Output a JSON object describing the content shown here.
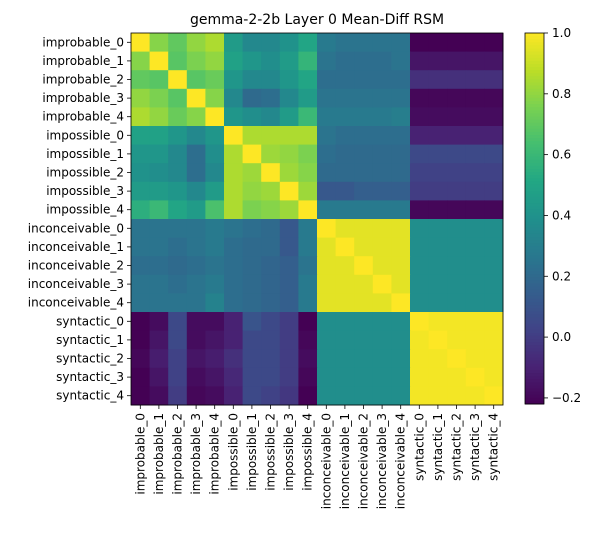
{
  "chart_data": {
    "type": "heatmap",
    "title": "gemma-2-2b Layer 0 Mean-Diff RSM",
    "xlabel": "",
    "ylabel": "",
    "row_labels": [
      "improbable_0",
      "improbable_1",
      "improbable_2",
      "improbable_3",
      "improbable_4",
      "impossible_0",
      "impossible_1",
      "impossible_2",
      "impossible_3",
      "impossible_4",
      "inconceivable_0",
      "inconceivable_1",
      "inconceivable_2",
      "inconceivable_3",
      "inconceivable_4",
      "syntactic_0",
      "syntactic_1",
      "syntactic_2",
      "syntactic_3",
      "syntactic_4"
    ],
    "col_labels": [
      "improbable_0",
      "improbable_1",
      "improbable_2",
      "improbable_3",
      "improbable_4",
      "impossible_0",
      "impossible_1",
      "impossible_2",
      "impossible_3",
      "impossible_4",
      "inconceivable_0",
      "inconceivable_1",
      "inconceivable_2",
      "inconceivable_3",
      "inconceivable_4",
      "syntactic_0",
      "syntactic_1",
      "syntactic_2",
      "syntactic_3",
      "syntactic_4"
    ],
    "values": [
      [
        1.0,
        0.78,
        0.7,
        0.8,
        0.85,
        0.45,
        0.35,
        0.35,
        0.4,
        0.5,
        0.28,
        0.25,
        0.25,
        0.25,
        0.25,
        -0.22,
        -0.22,
        -0.22,
        -0.22,
        -0.22
      ],
      [
        0.78,
        1.0,
        0.68,
        0.76,
        0.8,
        0.48,
        0.42,
        0.38,
        0.45,
        0.58,
        0.25,
        0.22,
        0.22,
        0.22,
        0.25,
        -0.15,
        -0.15,
        -0.15,
        -0.15,
        -0.15
      ],
      [
        0.7,
        0.68,
        1.0,
        0.68,
        0.72,
        0.42,
        0.35,
        0.35,
        0.42,
        0.5,
        0.22,
        0.22,
        0.22,
        0.22,
        0.22,
        -0.05,
        -0.05,
        -0.05,
        -0.05,
        -0.05
      ],
      [
        0.8,
        0.76,
        0.68,
        1.0,
        0.78,
        0.35,
        0.2,
        0.22,
        0.35,
        0.45,
        0.25,
        0.25,
        0.25,
        0.25,
        0.25,
        -0.2,
        -0.2,
        -0.2,
        -0.2,
        -0.2
      ],
      [
        0.85,
        0.8,
        0.72,
        0.78,
        1.0,
        0.42,
        0.38,
        0.35,
        0.45,
        0.6,
        0.28,
        0.28,
        0.28,
        0.28,
        0.3,
        -0.18,
        -0.18,
        -0.18,
        -0.18,
        -0.18
      ],
      [
        0.48,
        0.48,
        0.42,
        0.35,
        0.42,
        1.0,
        0.85,
        0.85,
        0.85,
        0.85,
        0.25,
        0.22,
        0.22,
        0.22,
        0.22,
        -0.1,
        -0.1,
        -0.1,
        -0.1,
        -0.1
      ],
      [
        0.42,
        0.42,
        0.35,
        0.22,
        0.38,
        0.85,
        1.0,
        0.82,
        0.8,
        0.76,
        0.22,
        0.2,
        0.2,
        0.2,
        0.2,
        0.05,
        0.05,
        0.05,
        0.05,
        0.05
      ],
      [
        0.4,
        0.38,
        0.35,
        0.22,
        0.35,
        0.85,
        0.82,
        1.0,
        0.82,
        0.78,
        0.2,
        0.2,
        0.2,
        0.2,
        0.2,
        0.02,
        0.02,
        0.02,
        0.02,
        0.02
      ],
      [
        0.45,
        0.45,
        0.42,
        0.35,
        0.45,
        0.85,
        0.8,
        0.82,
        1.0,
        0.82,
        0.12,
        0.12,
        0.15,
        0.15,
        0.15,
        0.0,
        0.0,
        0.0,
        0.0,
        0.0
      ],
      [
        0.55,
        0.6,
        0.5,
        0.45,
        0.65,
        0.85,
        0.76,
        0.78,
        0.82,
        1.0,
        0.28,
        0.28,
        0.28,
        0.28,
        0.28,
        -0.2,
        -0.2,
        -0.2,
        -0.2,
        -0.2
      ],
      [
        0.25,
        0.25,
        0.25,
        0.25,
        0.28,
        0.25,
        0.22,
        0.2,
        0.12,
        0.28,
        1.0,
        0.95,
        0.95,
        0.95,
        0.95,
        0.38,
        0.38,
        0.38,
        0.38,
        0.38
      ],
      [
        0.25,
        0.25,
        0.22,
        0.25,
        0.28,
        0.22,
        0.2,
        0.2,
        0.12,
        0.28,
        0.95,
        1.0,
        0.95,
        0.95,
        0.95,
        0.38,
        0.38,
        0.38,
        0.38,
        0.38
      ],
      [
        0.22,
        0.22,
        0.2,
        0.22,
        0.25,
        0.22,
        0.2,
        0.18,
        0.15,
        0.25,
        0.95,
        0.95,
        1.0,
        0.95,
        0.95,
        0.38,
        0.38,
        0.38,
        0.38,
        0.38
      ],
      [
        0.25,
        0.25,
        0.22,
        0.25,
        0.28,
        0.22,
        0.2,
        0.18,
        0.15,
        0.28,
        0.95,
        0.95,
        0.95,
        1.0,
        0.95,
        0.38,
        0.38,
        0.38,
        0.38,
        0.38
      ],
      [
        0.25,
        0.25,
        0.25,
        0.25,
        0.32,
        0.22,
        0.2,
        0.18,
        0.15,
        0.28,
        0.95,
        0.95,
        0.95,
        0.95,
        1.0,
        0.38,
        0.38,
        0.38,
        0.38,
        0.38
      ],
      [
        -0.22,
        -0.18,
        0.05,
        -0.18,
        -0.18,
        -0.1,
        0.1,
        0.05,
        0.0,
        -0.22,
        0.38,
        0.38,
        0.38,
        0.38,
        0.38,
        1.0,
        0.98,
        0.98,
        0.98,
        0.98
      ],
      [
        -0.22,
        -0.15,
        0.05,
        -0.18,
        -0.15,
        -0.1,
        0.05,
        0.05,
        0.0,
        -0.2,
        0.38,
        0.38,
        0.38,
        0.38,
        0.38,
        0.98,
        1.0,
        0.98,
        0.98,
        0.98
      ],
      [
        -0.2,
        -0.12,
        0.02,
        -0.15,
        -0.12,
        -0.05,
        0.05,
        0.05,
        0.0,
        -0.18,
        0.38,
        0.38,
        0.38,
        0.38,
        0.38,
        0.98,
        0.98,
        1.0,
        0.98,
        0.98
      ],
      [
        -0.22,
        -0.15,
        0.02,
        -0.18,
        -0.15,
        -0.08,
        0.05,
        0.05,
        0.0,
        -0.2,
        0.38,
        0.38,
        0.38,
        0.38,
        0.38,
        0.98,
        0.98,
        0.98,
        1.0,
        0.98
      ],
      [
        -0.22,
        -0.18,
        0.0,
        -0.2,
        -0.18,
        -0.1,
        0.05,
        0.02,
        -0.02,
        -0.22,
        0.38,
        0.38,
        0.38,
        0.38,
        0.38,
        0.98,
        0.98,
        0.98,
        0.98,
        1.0
      ]
    ],
    "vmin": -0.22,
    "vmax": 1.0,
    "colormap": "viridis",
    "colorbar": {
      "ticks": [
        -0.2,
        0.0,
        0.2,
        0.4,
        0.6,
        0.8,
        1.0
      ],
      "tick_labels": [
        "−0.2",
        "0.0",
        "0.2",
        "0.4",
        "0.6",
        "0.8",
        "1.0"
      ]
    }
  }
}
